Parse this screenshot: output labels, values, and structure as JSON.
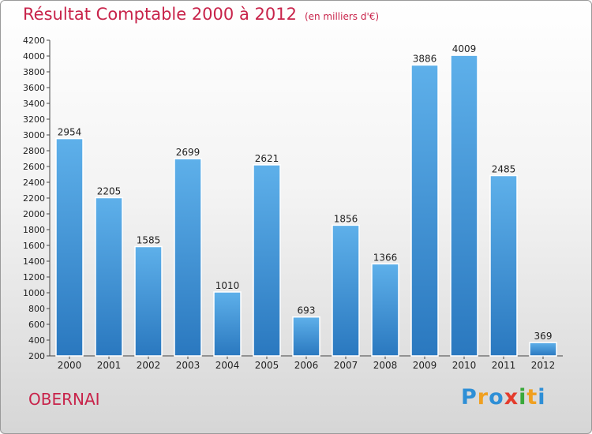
{
  "chart_data": {
    "type": "bar",
    "title": "Résultat Comptable 2000 à 2012",
    "subtitle": "(en milliers d'€)",
    "categories": [
      "2000",
      "2001",
      "2002",
      "2003",
      "2004",
      "2005",
      "2006",
      "2007",
      "2008",
      "2009",
      "2010",
      "2011",
      "2012"
    ],
    "values": [
      2954,
      2205,
      1585,
      2699,
      1010,
      2621,
      693,
      1856,
      1366,
      3886,
      4009,
      2485,
      369
    ],
    "ylim": [
      200,
      4200
    ],
    "yticks": [
      200,
      400,
      600,
      800,
      1000,
      1200,
      1400,
      1600,
      1800,
      2000,
      2200,
      2400,
      2600,
      2800,
      3000,
      3200,
      3400,
      3600,
      3800,
      4000,
      4200
    ],
    "grid": false,
    "bar_color": "#3a8fd3",
    "location": "OBERNAI"
  },
  "logo": {
    "p1": "P",
    "p2": "r",
    "p3": "o",
    "p4": "x",
    "p5": "i",
    "p6": "t",
    "p7": "i"
  }
}
